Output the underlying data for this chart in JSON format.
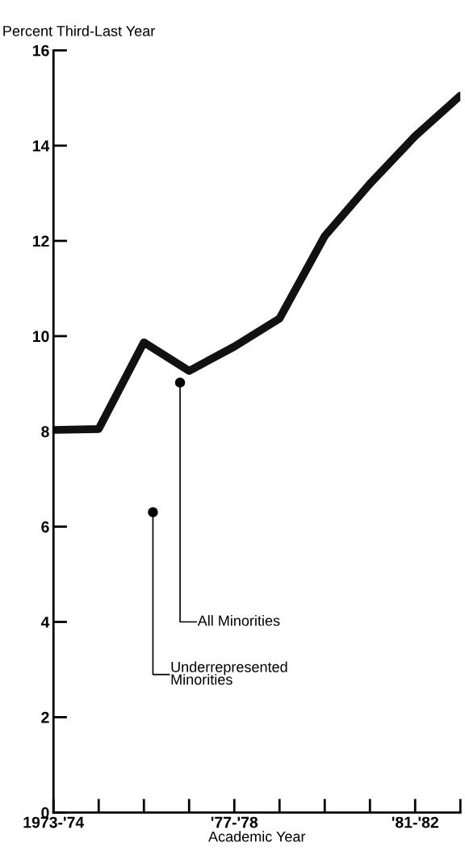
{
  "chart_data": {
    "type": "line",
    "ylabel": "Percent Third-Last Year",
    "xlabel": "Academic Year",
    "categories": [
      "1973-'74",
      null,
      null,
      null,
      "'77-'78",
      null,
      null,
      null,
      "'81-'82",
      null
    ],
    "series": [
      {
        "color": "#111111",
        "values": [
          8.03,
          8.05,
          9.87,
          9.27,
          9.78,
          10.37,
          12.1,
          13.2,
          14.2,
          15.05
        ]
      }
    ],
    "ylim": [
      0,
      16
    ],
    "yticks": [
      0,
      2,
      4,
      6,
      8,
      10,
      12,
      14,
      16
    ],
    "grid": false,
    "legend": false,
    "marker": "none",
    "line_style": "solid",
    "annotations": [
      "All Minorities",
      "Underrepresented\nMinorities"
    ]
  }
}
